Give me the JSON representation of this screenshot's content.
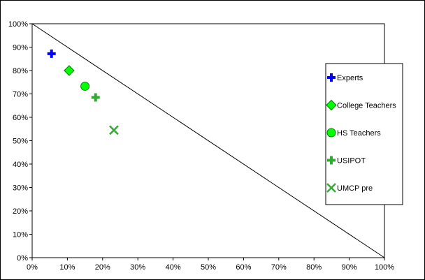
{
  "chart_data": {
    "type": "scatter",
    "title": "",
    "xlabel": "",
    "ylabel": "",
    "xlim": [
      0,
      100
    ],
    "ylim": [
      0,
      100
    ],
    "x_tick_labels": [
      "0%",
      "10%",
      "20%",
      "30%",
      "40%",
      "50%",
      "60%",
      "70%",
      "80%",
      "90%",
      "100%"
    ],
    "y_tick_labels": [
      "0%",
      "10%",
      "20%",
      "30%",
      "40%",
      "50%",
      "60%",
      "70%",
      "80%",
      "90%",
      "100%"
    ],
    "grid": false,
    "legend_position": "right",
    "reference_line": {
      "from": [
        0,
        100
      ],
      "to": [
        100,
        0
      ]
    },
    "series": [
      {
        "name": "Experts",
        "marker": "cross",
        "color": "#0000ff",
        "x": 5.5,
        "y": 87.2
      },
      {
        "name": "College Teachers",
        "marker": "diamond",
        "color": "#00ff00",
        "x": 10.5,
        "y": 80.0
      },
      {
        "name": "HS Teachers",
        "marker": "circle",
        "color": "#00ff00",
        "x": 15.0,
        "y": 73.3
      },
      {
        "name": "USIPOT",
        "marker": "cross",
        "color": "#33aa33",
        "x": 18.0,
        "y": 68.5
      },
      {
        "name": "UMCP pre",
        "marker": "x",
        "color": "#33aa33",
        "x": 23.2,
        "y": 54.5
      }
    ]
  }
}
